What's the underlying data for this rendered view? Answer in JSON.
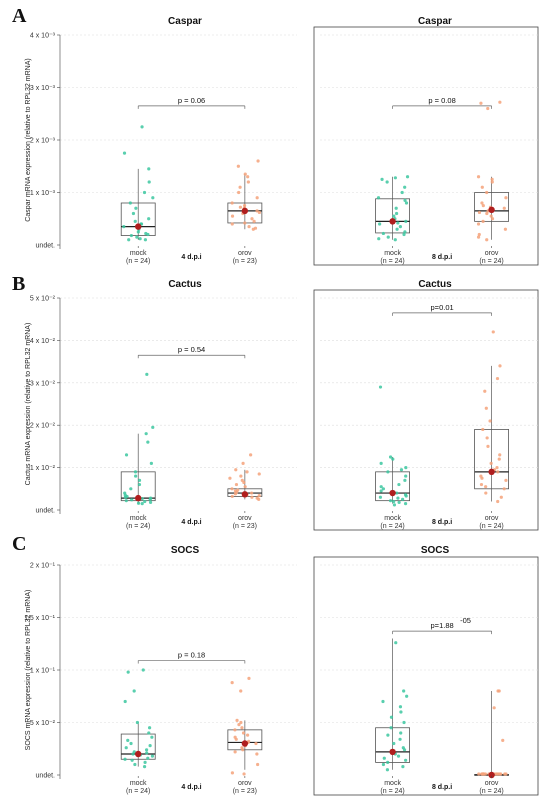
{
  "colors": {
    "mock": "#3cc7a0",
    "orov": "#f5a27a",
    "mean": "#b01e1e",
    "grid": "#dddddd",
    "axis": "#444444"
  },
  "chart_data": [
    {
      "type": "boxplot",
      "panel": "A",
      "title": "Caspar",
      "timepoint": "4 d.p.i",
      "ylabel": "Caspar mRNA expression (relative to RPL32 mRNA)",
      "ylim": [
        0,
        0.004
      ],
      "yticks": [
        {
          "v": 0,
          "t": "undet."
        },
        {
          "v": 0.001,
          "t": "1 x 10⁻³"
        },
        {
          "v": 0.002,
          "t": "2 x 10⁻³"
        },
        {
          "v": 0.003,
          "t": "3 x 10⁻³"
        },
        {
          "v": 0.004,
          "t": "4 x 10⁻³"
        }
      ],
      "p_value": "p = 0.06",
      "p_bar_y": 0.00265,
      "groups": [
        {
          "name": "mock",
          "n": "(n = 24)",
          "stats": {
            "min": 0.0001,
            "q1": 0.00018,
            "median": 0.00035,
            "q3": 0.0008,
            "max": 0.00145
          },
          "mean": 0.00035,
          "points": [
            0.0001,
            0.0001,
            0.00012,
            0.00015,
            0.00018,
            0.0002,
            0.00022,
            0.00025,
            0.0003,
            0.00033,
            0.00035,
            0.0004,
            0.0004,
            0.00045,
            0.0005,
            0.0006,
            0.0007,
            0.0008,
            0.0009,
            0.001,
            0.0012,
            0.00145,
            0.00175,
            0.00225
          ]
        },
        {
          "name": "orov",
          "n": "(n = 23)",
          "stats": {
            "min": 0.0003,
            "q1": 0.00042,
            "median": 0.00065,
            "q3": 0.0008,
            "max": 0.00135
          },
          "mean": 0.00065,
          "points": [
            0.0003,
            0.00032,
            0.00035,
            0.0004,
            0.00042,
            0.00045,
            0.0005,
            0.00055,
            0.0006,
            0.00062,
            0.00065,
            0.0007,
            0.00072,
            0.00075,
            0.0008,
            0.0009,
            0.001,
            0.0011,
            0.0012,
            0.0013,
            0.00135,
            0.0015,
            0.0016
          ]
        }
      ]
    },
    {
      "type": "boxplot",
      "panel": "",
      "title": "Caspar",
      "timepoint": "8 d.p.i",
      "ylabel": "",
      "ylim": [
        0,
        0.004
      ],
      "yticks": [],
      "p_value": "p = 0.08",
      "p_bar_y": 0.00265,
      "groups": [
        {
          "name": "mock",
          "n": "(n = 24)",
          "stats": {
            "min": 0.0001,
            "q1": 0.00023,
            "median": 0.00045,
            "q3": 0.00088,
            "max": 0.0013
          },
          "mean": 0.00045,
          "points": [
            0.0001,
            0.00012,
            0.00015,
            0.0002,
            0.00022,
            0.00025,
            0.0003,
            0.00035,
            0.0004,
            0.00042,
            0.00045,
            0.0005,
            0.00055,
            0.0006,
            0.0007,
            0.0008,
            0.00085,
            0.0009,
            0.001,
            0.0011,
            0.0012,
            0.00125,
            0.0013,
            0.00128
          ]
        },
        {
          "name": "orov",
          "n": "(n = 24)",
          "stats": {
            "min": 0.0001,
            "q1": 0.00045,
            "median": 0.00065,
            "q3": 0.001,
            "max": 0.0013
          },
          "mean": 0.00067,
          "points": [
            0.0001,
            0.00015,
            0.0002,
            0.0003,
            0.0004,
            0.00045,
            0.0005,
            0.00055,
            0.0006,
            0.00062,
            0.00065,
            0.0007,
            0.00072,
            0.00075,
            0.0008,
            0.0009,
            0.001,
            0.0011,
            0.0012,
            0.0013,
            0.00125,
            0.0026,
            0.0027,
            0.00272
          ]
        }
      ]
    },
    {
      "type": "boxplot",
      "panel": "B",
      "title": "Cactus",
      "timepoint": "4 d.p.i",
      "ylabel": "Cactus mRNA expression (relative to RPL32 mRNA)",
      "ylim": [
        0,
        0.05
      ],
      "yticks": [
        {
          "v": 0,
          "t": "undet."
        },
        {
          "v": 0.01,
          "t": "1 x 10⁻²"
        },
        {
          "v": 0.02,
          "t": "2 x 10⁻²"
        },
        {
          "v": 0.03,
          "t": "3 x 10⁻²"
        },
        {
          "v": 0.04,
          "t": "4 x 10⁻²"
        },
        {
          "v": 0.05,
          "t": "5 x 10⁻²"
        }
      ],
      "p_value": "p = 0.54",
      "p_bar_y": 0.0365,
      "groups": [
        {
          "name": "mock",
          "n": "(n = 24)",
          "stats": {
            "min": 0.0015,
            "q1": 0.0022,
            "median": 0.0028,
            "q3": 0.009,
            "max": 0.018
          },
          "mean": 0.0028,
          "points": [
            0.0015,
            0.0016,
            0.0018,
            0.002,
            0.0022,
            0.0024,
            0.0025,
            0.0027,
            0.0028,
            0.003,
            0.0032,
            0.0035,
            0.004,
            0.005,
            0.006,
            0.007,
            0.008,
            0.009,
            0.011,
            0.013,
            0.016,
            0.018,
            0.0195,
            0.032
          ]
        },
        {
          "name": "orov",
          "n": "(n = 23)",
          "stats": {
            "min": 0.0025,
            "q1": 0.0032,
            "median": 0.004,
            "q3": 0.005,
            "max": 0.0095
          },
          "mean": 0.0037,
          "points": [
            0.0025,
            0.0028,
            0.003,
            0.0032,
            0.0034,
            0.0036,
            0.0038,
            0.004,
            0.0042,
            0.0045,
            0.0047,
            0.005,
            0.0055,
            0.006,
            0.0065,
            0.007,
            0.0075,
            0.008,
            0.0085,
            0.009,
            0.0095,
            0.011,
            0.013
          ]
        }
      ]
    },
    {
      "type": "boxplot",
      "panel": "",
      "title": "Cactus",
      "timepoint": "8 d.p.i",
      "ylabel": "",
      "ylim": [
        0,
        0.05
      ],
      "yticks": [],
      "p_value": "p=0.01",
      "p_bar_y": 0.0465,
      "groups": [
        {
          "name": "mock",
          "n": "(n = 24)",
          "stats": {
            "min": 0.0015,
            "q1": 0.0022,
            "median": 0.004,
            "q3": 0.009,
            "max": 0.0125
          },
          "mean": 0.004,
          "points": [
            0.0012,
            0.0015,
            0.0018,
            0.002,
            0.0022,
            0.0025,
            0.0028,
            0.003,
            0.0033,
            0.0036,
            0.004,
            0.0045,
            0.005,
            0.0055,
            0.006,
            0.007,
            0.008,
            0.009,
            0.0095,
            0.01,
            0.011,
            0.012,
            0.0125,
            0.029
          ]
        },
        {
          "name": "orov",
          "n": "(n = 24)",
          "stats": {
            "min": 0.002,
            "q1": 0.005,
            "median": 0.009,
            "q3": 0.019,
            "max": 0.034
          },
          "mean": 0.009,
          "points": [
            0.002,
            0.003,
            0.004,
            0.005,
            0.0055,
            0.006,
            0.007,
            0.0075,
            0.008,
            0.009,
            0.0095,
            0.01,
            0.011,
            0.012,
            0.013,
            0.015,
            0.017,
            0.019,
            0.021,
            0.024,
            0.028,
            0.031,
            0.034,
            0.042
          ]
        }
      ]
    },
    {
      "type": "boxplot",
      "panel": "C",
      "title": "SOCS",
      "timepoint": "4 d.p.i",
      "ylabel": "SOCS mRNA expression (relative to RPL32 mRNA)",
      "ylim": [
        0,
        0.2
      ],
      "yticks": [
        {
          "v": 0,
          "t": "undet."
        },
        {
          "v": 0.05,
          "t": "5 x 10⁻²"
        },
        {
          "v": 0.1,
          "t": "1 x 10⁻¹"
        },
        {
          "v": 0.15,
          "t": "1.5 x 10⁻¹"
        },
        {
          "v": 0.2,
          "t": "2 x 10⁻¹"
        }
      ],
      "p_value": "p = 0.18",
      "p_bar_y": 0.109,
      "groups": [
        {
          "name": "mock",
          "n": "(n = 24)",
          "stats": {
            "min": 0.008,
            "q1": 0.015,
            "median": 0.02,
            "q3": 0.039,
            "max": 0.05
          },
          "mean": 0.02,
          "points": [
            0.008,
            0.01,
            0.012,
            0.014,
            0.015,
            0.016,
            0.018,
            0.019,
            0.02,
            0.021,
            0.022,
            0.024,
            0.026,
            0.028,
            0.03,
            0.033,
            0.036,
            0.04,
            0.045,
            0.05,
            0.07,
            0.08,
            0.1,
            0.098
          ]
        },
        {
          "name": "orov",
          "n": "(n = 23)",
          "stats": {
            "min": 0.005,
            "q1": 0.024,
            "median": 0.031,
            "q3": 0.043,
            "max": 0.052
          },
          "mean": 0.03,
          "points": [
            0.001,
            0.002,
            0.01,
            0.02,
            0.022,
            0.024,
            0.026,
            0.028,
            0.03,
            0.031,
            0.032,
            0.034,
            0.036,
            0.038,
            0.04,
            0.043,
            0.045,
            0.048,
            0.05,
            0.052,
            0.08,
            0.088,
            0.092
          ]
        }
      ]
    },
    {
      "type": "boxplot",
      "panel": "",
      "title": "SOCS",
      "timepoint": "8 d.p.i",
      "ylabel": "",
      "ylim": [
        0,
        0.2
      ],
      "yticks": [],
      "p_value": "p=1.88",
      "p_value_exp": "-05",
      "p_bar_y": 0.137,
      "groups": [
        {
          "name": "mock",
          "n": "(n = 24)",
          "stats": {
            "min": 0.005,
            "q1": 0.012,
            "median": 0.022,
            "q3": 0.045,
            "max": 0.13
          },
          "mean": 0.022,
          "points": [
            0.005,
            0.008,
            0.01,
            0.012,
            0.014,
            0.016,
            0.018,
            0.02,
            0.022,
            0.024,
            0.026,
            0.03,
            0.034,
            0.038,
            0.04,
            0.045,
            0.05,
            0.055,
            0.06,
            0.065,
            0.07,
            0.075,
            0.08,
            0.126
          ]
        },
        {
          "name": "orov",
          "n": "(n = 24)",
          "stats": {
            "min": 0,
            "q1": 0,
            "median": 0,
            "q3": 0.0005,
            "max": 0.08
          },
          "mean": 0,
          "points": [
            0,
            0,
            0,
            0,
            0,
            0,
            0,
            0,
            0,
            0,
            0,
            0,
            0,
            0,
            0,
            0,
            0,
            0,
            0,
            0,
            0.033,
            0.064,
            0.08,
            0.08
          ]
        }
      ]
    }
  ]
}
